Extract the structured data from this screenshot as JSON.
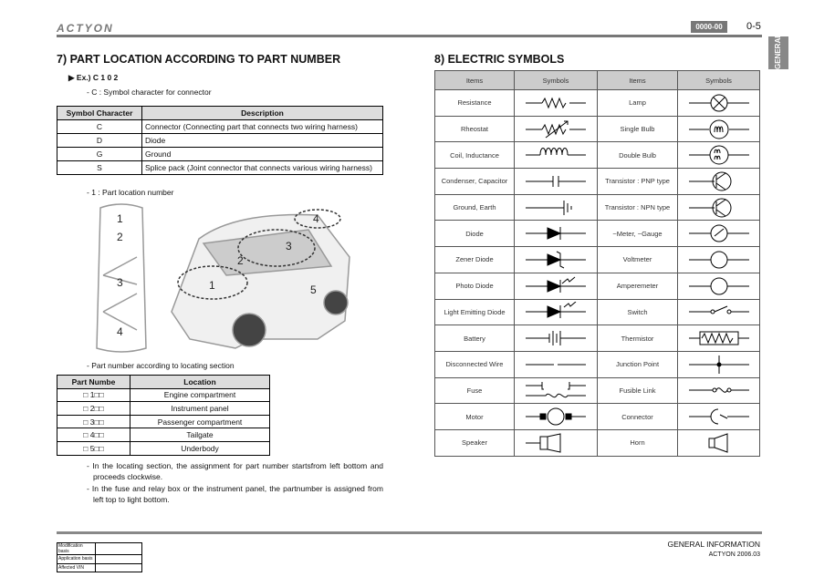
{
  "header": {
    "brand": "ACTYON",
    "badge": "0000-00",
    "page": "0-5",
    "side_tab": "GENERAL"
  },
  "left": {
    "title": "7) PART LOCATION ACCORDING TO PART NUMBER",
    "example": "Ex.) C 1 0 2",
    "c_note": "- C : Symbol character for connector",
    "symbol_table": {
      "headers": [
        "Symbol Character",
        "Description"
      ],
      "rows": [
        [
          "C",
          "Connector (Connecting part that connects two wiring harness)"
        ],
        [
          "D",
          "Diode"
        ],
        [
          "G",
          "Ground"
        ],
        [
          "S",
          "Splice pack (Joint connector that connects various wiring harness)"
        ]
      ]
    },
    "loc_note": "- 1 : Part location number",
    "diagram_labels": [
      "1",
      "2",
      "3",
      "4"
    ],
    "car_labels": [
      "1",
      "2",
      "3",
      "4",
      "5"
    ],
    "section_note": "- Part number according to locating section",
    "location_table": {
      "headers": [
        "Part Numbe",
        "Location"
      ],
      "rows": [
        [
          "□ 1□□",
          "Engine compartment"
        ],
        [
          "□ 2□□",
          "Instrument panel"
        ],
        [
          "□ 3□□",
          "Passenger compartment"
        ],
        [
          "□ 4□□",
          "Tailgate"
        ],
        [
          "□ 5□□",
          "Underbody"
        ]
      ]
    },
    "notes": [
      "- In the locating section, the assignment for part number startsfrom left bottom and proceeds clockwise.",
      "- In the fuse and relay box or the instrument panel, the partnumber is assigned from left top to light bottom."
    ]
  },
  "right": {
    "title": "8) ELECTRIC SYMBOLS",
    "headers": [
      "Items",
      "Symbols",
      "Items",
      "Symbols"
    ],
    "rows": [
      {
        "left": "Resistance",
        "left_icon": "resistor-icon",
        "right": "Lamp",
        "right_icon": "lamp-icon"
      },
      {
        "left": "Rheostat",
        "left_icon": "rheostat-icon",
        "right": "Single Bulb",
        "right_icon": "single-bulb-icon"
      },
      {
        "left": "Coil, Inductance",
        "left_icon": "coil-icon",
        "right": "Double Bulb",
        "right_icon": "double-bulb-icon"
      },
      {
        "left": "Condenser, Capacitor",
        "left_icon": "capacitor-icon",
        "right": "Transistor : PNP type",
        "right_icon": "pnp-transistor-icon"
      },
      {
        "left": "Ground, Earth",
        "left_icon": "ground-icon",
        "right": "Transistor : NPN type",
        "right_icon": "npn-transistor-icon"
      },
      {
        "left": "Diode",
        "left_icon": "diode-icon",
        "right": "~Meter, ~Gauge",
        "right_icon": "gauge-icon"
      },
      {
        "left": "Zener Diode",
        "left_icon": "zener-diode-icon",
        "right": "Voltmeter",
        "right_icon": "voltmeter-icon"
      },
      {
        "left": "Photo Diode",
        "left_icon": "photo-diode-icon",
        "right": "Amperemeter",
        "right_icon": "amperemeter-icon"
      },
      {
        "left": "Light Emitting Diode",
        "left_icon": "led-icon",
        "right": "Switch",
        "right_icon": "switch-icon"
      },
      {
        "left": "Battery",
        "left_icon": "battery-icon",
        "right": "Thermistor",
        "right_icon": "thermistor-icon"
      },
      {
        "left": "Disconnected Wire",
        "left_icon": "disconnected-wire-icon",
        "right": "Junction Point",
        "right_icon": "junction-icon"
      },
      {
        "left": "Fuse",
        "left_icon": "fuse-icon",
        "right": "Fusible Link",
        "right_icon": "fusible-link-icon"
      },
      {
        "left": "Motor",
        "left_icon": "motor-icon",
        "right": "Connector",
        "right_icon": "connector-icon"
      },
      {
        "left": "Speaker",
        "left_icon": "speaker-icon",
        "right": "Horn",
        "right_icon": "horn-icon"
      }
    ],
    "meter_letters": {
      "volt": "V",
      "amp": "A",
      "motor": "M"
    }
  },
  "footer": {
    "fields": [
      "Modification basis",
      "Application basis",
      "Affected VIN"
    ],
    "section": "GENERAL INFORMATION",
    "edition": "ACTYON 2006.03"
  }
}
